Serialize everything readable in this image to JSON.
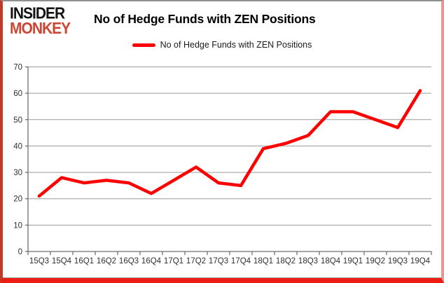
{
  "branding": {
    "logo_line1": "INSIDER",
    "logo_line2": "MONKEY",
    "logo_color_primary": "#141414",
    "logo_color_secondary": "#cc4733"
  },
  "header": {
    "title": "No of Hedge Funds with ZEN Positions"
  },
  "legend": {
    "label": "No of Hedge Funds with ZEN Positions",
    "swatch_color": "#fe0000",
    "position": "top-center"
  },
  "chart_data": {
    "type": "line",
    "title": "No of Hedge Funds with ZEN Positions",
    "categories": [
      "15Q3",
      "15Q4",
      "16Q1",
      "16Q2",
      "16Q3",
      "16Q4",
      "17Q1",
      "17Q2",
      "17Q3",
      "17Q4",
      "18Q1",
      "18Q2",
      "18Q3",
      "18Q4",
      "19Q1",
      "19Q2",
      "19Q3",
      "19Q4"
    ],
    "series": [
      {
        "name": "No of Hedge Funds with ZEN Positions",
        "color": "#fe0000",
        "values": [
          21,
          28,
          26,
          27,
          26,
          22,
          27,
          32,
          26,
          25,
          39,
          41,
          44,
          53,
          53,
          50,
          47,
          61
        ]
      }
    ],
    "xlabel": "",
    "ylabel": "",
    "ylim": [
      0,
      70
    ],
    "yticks": [
      0,
      10,
      20,
      30,
      40,
      50,
      60,
      70
    ],
    "grid": "horizontal",
    "legend_position": "top",
    "colors": {
      "gridline": "#9a9a9a",
      "axis": "#6f6f6f",
      "tick_label": "#303030"
    }
  }
}
